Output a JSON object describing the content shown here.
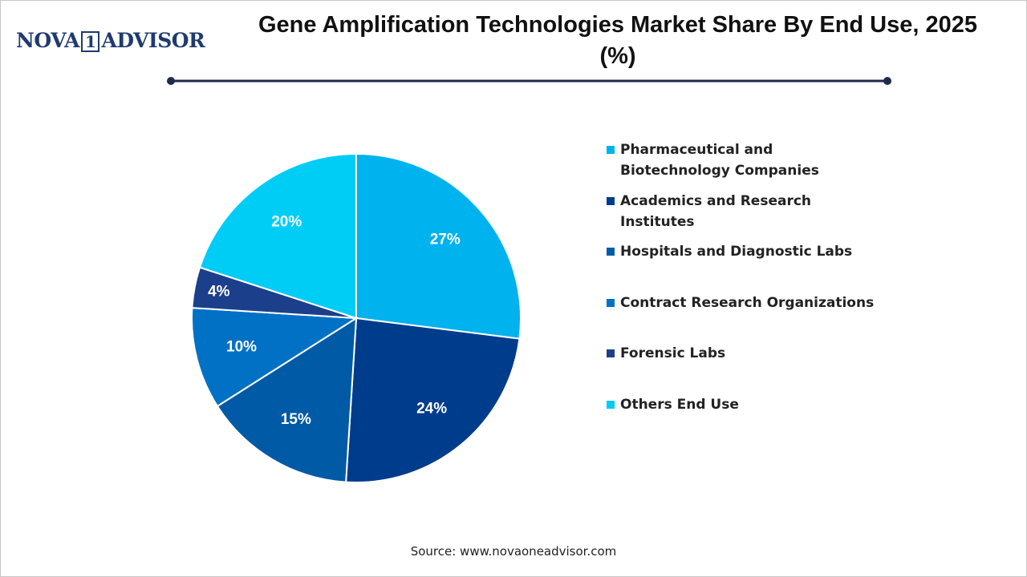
{
  "logo": {
    "left": "NOVA",
    "mark": "1",
    "right": "ADVISOR"
  },
  "chart_data": {
    "type": "pie",
    "title": "Gene Amplification Technologies Market Share By End Use, 2025 (%)",
    "categories": [
      "Pharmaceutical and Biotechnology Companies",
      "Academics and Research Institutes",
      "Hospitals and Diagnostic Labs",
      "Contract Research Organizations",
      "Forensic Labs",
      "Others End Use"
    ],
    "values": [
      27,
      24,
      15,
      10,
      4,
      20
    ],
    "value_labels": [
      "27%",
      "24%",
      "15%",
      "10%",
      "4%",
      "20%"
    ],
    "colors": [
      "#00b2ee",
      "#003c8c",
      "#005aa6",
      "#0071c5",
      "#1c3f8c",
      "#00cdf5"
    ]
  },
  "source": "Source: www.novaoneadvisor.com"
}
